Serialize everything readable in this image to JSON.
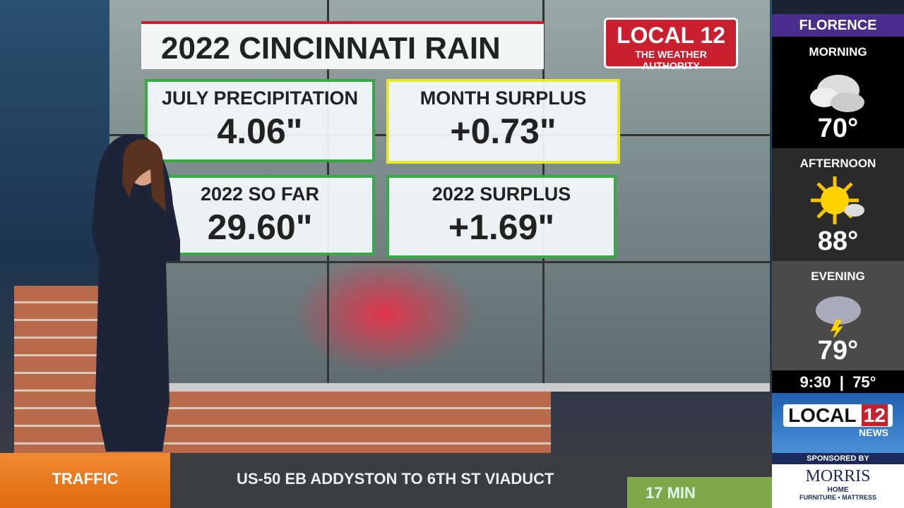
{
  "graphic": {
    "title": "2022 CINCINNATI RAIN",
    "logo": {
      "brand": "LOCAL",
      "number": "12",
      "tagline": "THE WEATHER AUTHORITY"
    },
    "boxes": [
      {
        "label": "JULY PRECIPITATION",
        "value": "4.06\""
      },
      {
        "label": "MONTH SURPLUS",
        "value": "+0.73\""
      },
      {
        "label": "2022 SO FAR",
        "value": "29.60\""
      },
      {
        "label": "2022 SURPLUS",
        "value": "+1.69\""
      }
    ]
  },
  "sidebar": {
    "location": "FLORENCE",
    "periods": [
      {
        "name": "MORNING",
        "temp": "70°"
      },
      {
        "name": "AFTERNOON",
        "temp": "88°"
      },
      {
        "name": "EVENING",
        "temp": "79°"
      }
    ],
    "time": "9:30",
    "current": "75°",
    "logo": {
      "brand": "LOCAL",
      "number": "12",
      "sub": "NEWS"
    },
    "sponsor": {
      "label": "SPONSORED BY",
      "name": "MORRIS",
      "sub": "HOME",
      "line": "FURNITURE • MATTRESS"
    }
  },
  "ticker": {
    "category": "TRAFFIC",
    "text": "US-50 EB ADDYSTON TO 6TH ST VIADUCT",
    "time": "17 MIN"
  }
}
